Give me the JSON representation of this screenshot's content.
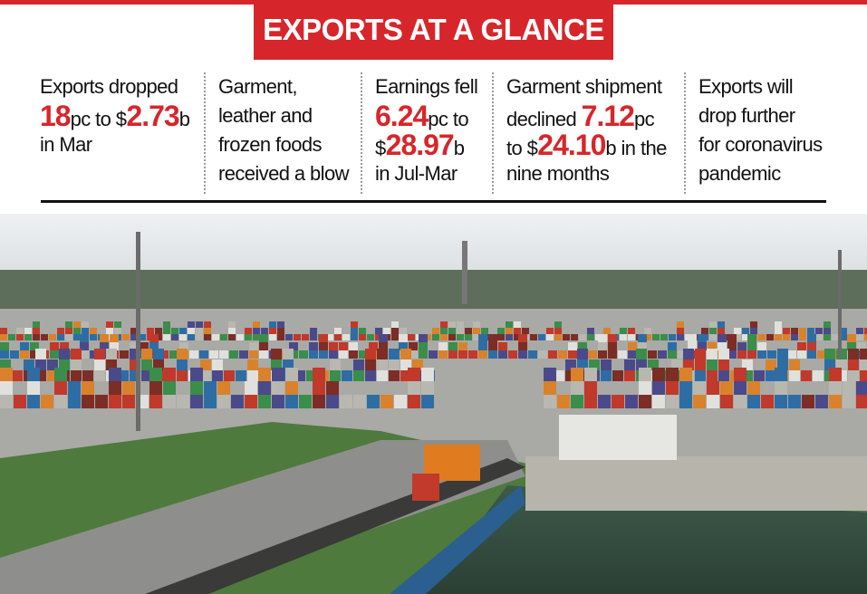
{
  "header": {
    "title": "EXPORTS AT A GLANCE"
  },
  "items": [
    {
      "lines": [
        [
          {
            "text": "Exports dropped"
          }
        ],
        [
          {
            "text": "18",
            "emphasis": true
          },
          {
            "text": "pc to $"
          },
          {
            "text": "2.73",
            "emphasis": true
          },
          {
            "text": "b"
          }
        ],
        [
          {
            "text": "in Mar"
          }
        ]
      ]
    },
    {
      "lines": [
        [
          {
            "text": "Garment,"
          }
        ],
        [
          {
            "text": "leather and"
          }
        ],
        [
          {
            "text": "frozen foods"
          }
        ],
        [
          {
            "text": "received a blow"
          }
        ]
      ]
    },
    {
      "lines": [
        [
          {
            "text": "Earnings fell"
          }
        ],
        [
          {
            "text": "6.24",
            "emphasis": true
          },
          {
            "text": "pc to"
          }
        ],
        [
          {
            "text": "$"
          },
          {
            "text": "28.97",
            "emphasis": true
          },
          {
            "text": "b"
          }
        ],
        [
          {
            "text": "in Jul-Mar"
          }
        ]
      ]
    },
    {
      "lines": [
        [
          {
            "text": "Garment shipment"
          }
        ],
        [
          {
            "text": "declined "
          },
          {
            "text": "7.12",
            "emphasis": true
          },
          {
            "text": "pc"
          }
        ],
        [
          {
            "text": "to $"
          },
          {
            "text": "24.10",
            "emphasis": true
          },
          {
            "text": "b in the"
          }
        ],
        [
          {
            "text": "nine months"
          }
        ]
      ]
    },
    {
      "lines": [
        [
          {
            "text": "Exports will"
          }
        ],
        [
          {
            "text": "drop further"
          }
        ],
        [
          {
            "text": "for coronavirus"
          }
        ],
        [
          {
            "text": "pandemic"
          }
        ]
      ]
    }
  ]
}
